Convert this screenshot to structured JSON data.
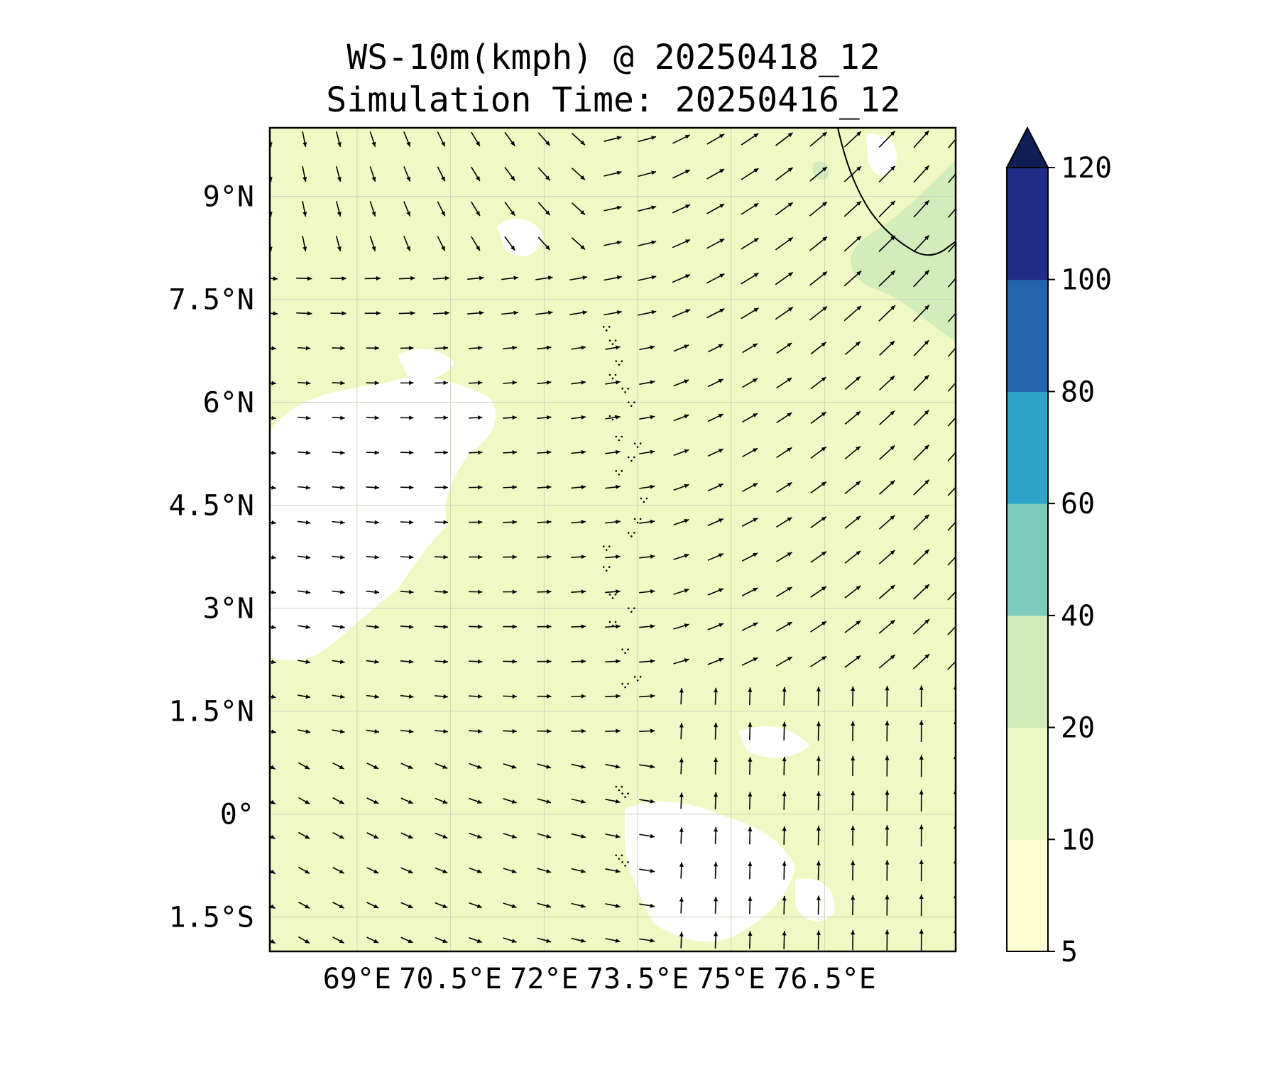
{
  "title_line1": "WS-10m(kmph) @ 20250418_12",
  "title_line2": "Simulation Time: 20250416_12",
  "map": {
    "lon_range": [
      67.6,
      78.6
    ],
    "lat_range": [
      -2.0,
      10.0
    ],
    "lat_ticks": [
      {
        "value": 9,
        "label": "9°N"
      },
      {
        "value": 7.5,
        "label": "7.5°N"
      },
      {
        "value": 6,
        "label": "6°N"
      },
      {
        "value": 4.5,
        "label": "4.5°N"
      },
      {
        "value": 3,
        "label": "3°N"
      },
      {
        "value": 1.5,
        "label": "1.5°N"
      },
      {
        "value": 0,
        "label": "0°"
      },
      {
        "value": -1.5,
        "label": "1.5°S"
      }
    ],
    "lon_ticks": [
      {
        "value": 69,
        "label": "69°E"
      },
      {
        "value": 70.5,
        "label": "70.5°E"
      },
      {
        "value": 72,
        "label": "72°E"
      },
      {
        "value": 73.5,
        "label": "73.5°E"
      },
      {
        "value": 75,
        "label": "75°E"
      },
      {
        "value": 76.5,
        "label": "76.5°E"
      }
    ],
    "gridlines": true,
    "field_colors": {
      "background": "#f0f9c4",
      "calm": "#ffffff",
      "stronger": "#d3ecbb",
      "coast": "#000000"
    }
  },
  "colorbar": {
    "levels": [
      5,
      10,
      20,
      40,
      60,
      80,
      100,
      120
    ],
    "tick_labels": [
      "5",
      "10",
      "20",
      "40",
      "60",
      "80",
      "100",
      "120"
    ],
    "colors": [
      "#fcfdd3",
      "#eef8c2",
      "#d0ecba",
      "#7ccbbc",
      "#2ea3c5",
      "#2466aa",
      "#1f2d84"
    ],
    "extend_color": "#0f1f56",
    "extend": "max"
  }
}
